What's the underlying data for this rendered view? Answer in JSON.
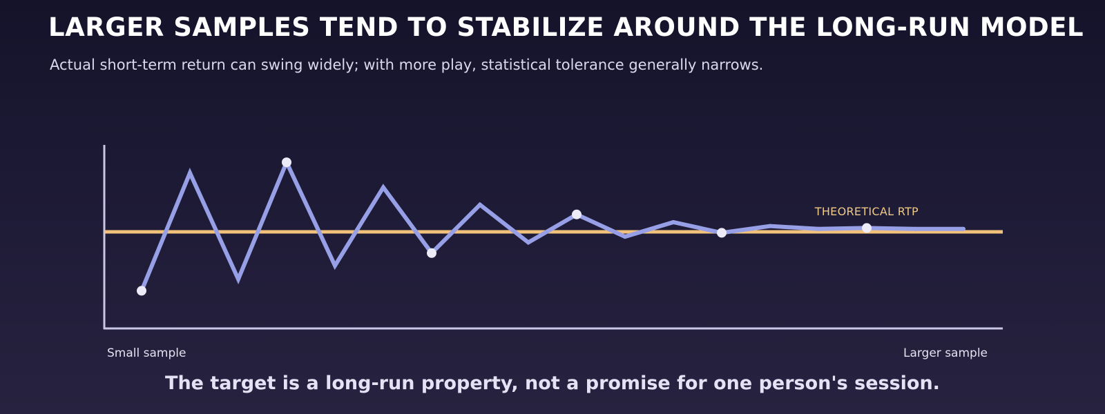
{
  "title": "LARGER SAMPLES TEND TO STABILIZE AROUND THE LONG-RUN MODEL",
  "subtitle": "Actual short-term return can swing widely; with more play, statistical tolerance generally narrows.",
  "caption": "The target is a long-run property, not a promise for one person's session.",
  "colors": {
    "background_top": "#15132a",
    "background_bottom": "#27223f",
    "series": "#97a0e6",
    "reference": "#f2c27c",
    "axis": "#c9c6e6",
    "marker": "#ecebf7"
  },
  "chart_data": {
    "type": "line",
    "x_axis_labels": [
      "Small sample",
      "Larger sample"
    ],
    "ylim": [
      -1.0,
      0.9
    ],
    "grid": false,
    "reference_line": {
      "label": "THEORETICAL RTP",
      "value": 0
    },
    "series": [
      {
        "values": [
          -0.61,
          0.61,
          -0.49,
          0.72,
          -0.35,
          0.46,
          -0.22,
          0.28,
          -0.11,
          0.18,
          -0.05,
          0.1,
          -0.01,
          0.06,
          0.03,
          0.04,
          0.03,
          0.03
        ],
        "highlighted_points": [
          0,
          3,
          6,
          9,
          12,
          15
        ]
      }
    ]
  }
}
